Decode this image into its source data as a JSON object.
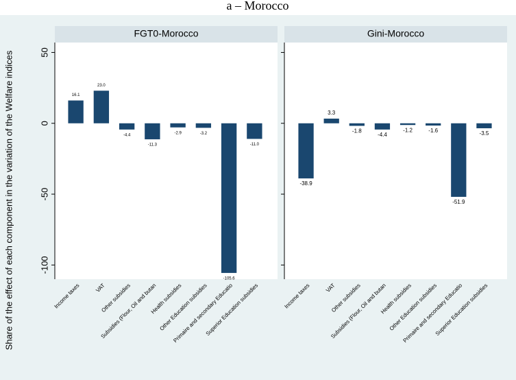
{
  "title": "a – Morocco",
  "ylabel": "Share of the effect of each component in the variation of the Welfare indices",
  "chart_data": [
    {
      "type": "bar",
      "title": "FGT0-Morocco",
      "categories": [
        "Income taxes",
        "VAT",
        "Other subsidies",
        "Subsidies (Flour, Oil and butan",
        "Health subsidies",
        "Other Education subsidies",
        "Primaire and secondary Educatio",
        "Superior Education subsidies"
      ],
      "values": [
        16.1,
        23.0,
        -4.4,
        -11.3,
        -2.9,
        -3.2,
        -105.6,
        -11.0
      ],
      "value_labels": [
        "16.1",
        "23.0",
        "-4.4",
        "-11.3",
        "-2.9",
        "-3.2",
        "-105.6",
        "-11.0"
      ],
      "color": "#1a476f",
      "ylim": [
        -110,
        57
      ],
      "yticks": [
        -100,
        -50,
        0,
        50
      ],
      "grid": false
    },
    {
      "type": "bar",
      "title": "Gini-Morocco",
      "categories": [
        "Income taxes",
        "VAT",
        "Other subsidies",
        "Subsidies (Flour, Oil and butan",
        "Health subsidies",
        "Other Education subsidies",
        "Primaire and secondary Educatio",
        "Superior Education subsidies"
      ],
      "values": [
        -38.9,
        3.3,
        -1.8,
        -4.4,
        -1.2,
        -1.6,
        -51.9,
        -3.5
      ],
      "value_labels": [
        "-38.9",
        "3.3",
        "-1.8",
        "-4.4",
        "-1.2",
        "-1.6",
        "-51.9",
        "-3.5"
      ],
      "color": "#1a476f",
      "ylim": [
        -110,
        57
      ],
      "yticks": [
        -100,
        -50,
        0,
        50
      ],
      "grid": false
    }
  ]
}
